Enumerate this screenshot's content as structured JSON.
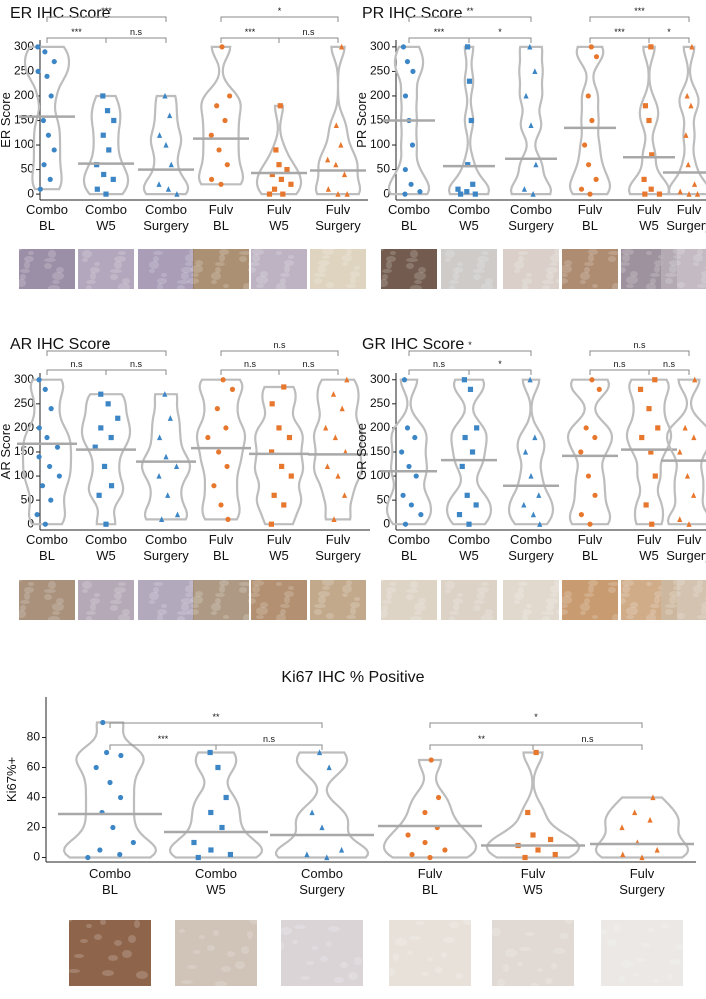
{
  "chart_data": [
    {
      "type": "violin",
      "title": "ER IHC Score",
      "y_label": "ER Score",
      "ylim": [
        -12,
        314
      ],
      "yticks": [
        0,
        50,
        100,
        150,
        200,
        250,
        300
      ],
      "categories": [
        [
          "Combo",
          "BL"
        ],
        [
          "Combo",
          "W5"
        ],
        [
          "Combo",
          "Surgery"
        ],
        [
          "Fulv",
          "BL"
        ],
        [
          "Fulv",
          "W5"
        ],
        [
          "Fulv",
          "Surgery"
        ]
      ],
      "colors": [
        "#3d86c6",
        "#3d86c6",
        "#3d86c6",
        "#e8772e",
        "#e8772e",
        "#e8772e"
      ],
      "markers": [
        "circle",
        "square",
        "triangle",
        "circle",
        "square",
        "triangle"
      ],
      "values": [
        158,
        62,
        50,
        113,
        43,
        48
      ],
      "points": [
        [
          300,
          290,
          270,
          250,
          240,
          200,
          150,
          120,
          90,
          60,
          30,
          10
        ],
        [
          200,
          170,
          150,
          120,
          90,
          60,
          40,
          30,
          10,
          0
        ],
        [
          200,
          160,
          120,
          100,
          60,
          20,
          10,
          0
        ],
        [
          300,
          200,
          180,
          150,
          120,
          90,
          60,
          30,
          20
        ],
        [
          180,
          90,
          60,
          50,
          40,
          30,
          20,
          10,
          0,
          0
        ],
        [
          300,
          140,
          100,
          70,
          60,
          40,
          10,
          0,
          0
        ]
      ],
      "comparisons": [
        {
          "from": 0,
          "to": 1,
          "label": "***"
        },
        {
          "from": 1,
          "to": 2,
          "label": "n.s"
        },
        {
          "from": 0,
          "to": 2,
          "label": "***"
        },
        {
          "from": 3,
          "to": 4,
          "label": "***"
        },
        {
          "from": 4,
          "to": 5,
          "label": "n.s"
        },
        {
          "from": 3,
          "to": 5,
          "label": "*"
        }
      ]
    },
    {
      "type": "violin",
      "title": "PR IHC Score",
      "y_label": "PR Score",
      "ylim": [
        -12,
        314
      ],
      "yticks": [
        0,
        50,
        100,
        150,
        200,
        250,
        300
      ],
      "categories": [
        [
          "Combo",
          "BL"
        ],
        [
          "Combo",
          "W5"
        ],
        [
          "Combo",
          "Surgery"
        ],
        [
          "Fulv",
          "BL"
        ],
        [
          "Fulv",
          "W5"
        ],
        [
          "Fulv",
          "Surgery"
        ]
      ],
      "colors": [
        "#3d86c6",
        "#3d86c6",
        "#3d86c6",
        "#e8772e",
        "#e8772e",
        "#e8772e"
      ],
      "markers": [
        "circle",
        "square",
        "triangle",
        "circle",
        "square",
        "triangle"
      ],
      "values": [
        150,
        57,
        72,
        135,
        75,
        44
      ],
      "points": [
        [
          300,
          270,
          250,
          200,
          150,
          100,
          50,
          20,
          5,
          0
        ],
        [
          300,
          230,
          150,
          60,
          20,
          10,
          5,
          0,
          0
        ],
        [
          300,
          250,
          200,
          140,
          60,
          10,
          0
        ],
        [
          300,
          280,
          200,
          150,
          100,
          60,
          30,
          10,
          0
        ],
        [
          300,
          180,
          150,
          80,
          30,
          10,
          0,
          0
        ],
        [
          300,
          200,
          180,
          120,
          60,
          20,
          5,
          0,
          0
        ]
      ],
      "comparisons": [
        {
          "from": 0,
          "to": 1,
          "label": "***"
        },
        {
          "from": 1,
          "to": 2,
          "label": "*"
        },
        {
          "from": 0,
          "to": 2,
          "label": "**"
        },
        {
          "from": 3,
          "to": 4,
          "label": "***"
        },
        {
          "from": 4,
          "to": 5,
          "label": "*"
        },
        {
          "from": 3,
          "to": 5,
          "label": "***"
        }
      ]
    },
    {
      "type": "violin",
      "title": "AR IHC Score",
      "y_label": "AR Score",
      "ylim": [
        -12,
        314
      ],
      "yticks": [
        0,
        50,
        100,
        150,
        200,
        250,
        300
      ],
      "categories": [
        [
          "Combo",
          "BL"
        ],
        [
          "Combo",
          "W5"
        ],
        [
          "Combo",
          "Surgery"
        ],
        [
          "Fulv",
          "BL"
        ],
        [
          "Fulv",
          "W5"
        ],
        [
          "Fulv",
          "Surgery"
        ]
      ],
      "colors": [
        "#3d86c6",
        "#3d86c6",
        "#3d86c6",
        "#e8772e",
        "#e8772e",
        "#e8772e"
      ],
      "markers": [
        "circle",
        "square",
        "triangle",
        "circle",
        "square",
        "triangle"
      ],
      "values": [
        167,
        155,
        130,
        158,
        146,
        145
      ],
      "points": [
        [
          300,
          280,
          240,
          200,
          180,
          160,
          140,
          120,
          100,
          80,
          50,
          20,
          0
        ],
        [
          270,
          250,
          220,
          200,
          180,
          160,
          120,
          80,
          60,
          0
        ],
        [
          270,
          220,
          180,
          140,
          120,
          100,
          60,
          20,
          10
        ],
        [
          300,
          280,
          240,
          200,
          180,
          150,
          120,
          80,
          40,
          10
        ],
        [
          285,
          250,
          200,
          180,
          150,
          120,
          100,
          60,
          40,
          0
        ],
        [
          300,
          270,
          240,
          200,
          180,
          150,
          120,
          100,
          60,
          10
        ]
      ],
      "comparisons": [
        {
          "from": 0,
          "to": 1,
          "label": "n.s"
        },
        {
          "from": 1,
          "to": 2,
          "label": "n.s"
        },
        {
          "from": 0,
          "to": 2,
          "label": "*"
        },
        {
          "from": 3,
          "to": 4,
          "label": "n.s"
        },
        {
          "from": 4,
          "to": 5,
          "label": "n.s"
        },
        {
          "from": 3,
          "to": 5,
          "label": "n.s"
        }
      ]
    },
    {
      "type": "violin",
      "title": "GR IHC Score",
      "y_label": "GR Score",
      "ylim": [
        -12,
        314
      ],
      "yticks": [
        0,
        50,
        100,
        150,
        200,
        250,
        300
      ],
      "categories": [
        [
          "Combo",
          "BL"
        ],
        [
          "Combo",
          "W5"
        ],
        [
          "Combo",
          "Surgery"
        ],
        [
          "Fulv",
          "BL"
        ],
        [
          "Fulv",
          "W5"
        ],
        [
          "Fulv",
          "Surgery"
        ]
      ],
      "colors": [
        "#3d86c6",
        "#3d86c6",
        "#3d86c6",
        "#e8772e",
        "#e8772e",
        "#e8772e"
      ],
      "markers": [
        "circle",
        "square",
        "triangle",
        "circle",
        "square",
        "triangle"
      ],
      "values": [
        110,
        133,
        80,
        142,
        155,
        132
      ],
      "points": [
        [
          300,
          200,
          180,
          150,
          120,
          100,
          60,
          40,
          20,
          0
        ],
        [
          300,
          280,
          200,
          180,
          150,
          120,
          60,
          40,
          20,
          0
        ],
        [
          300,
          180,
          150,
          100,
          60,
          40,
          20,
          0
        ],
        [
          300,
          280,
          200,
          180,
          150,
          100,
          60,
          20,
          0
        ],
        [
          300,
          280,
          240,
          200,
          180,
          150,
          100,
          40,
          0
        ],
        [
          300,
          200,
          180,
          150,
          100,
          60,
          10,
          0
        ]
      ],
      "comparisons": [
        {
          "from": 0,
          "to": 1,
          "label": "n.s"
        },
        {
          "from": 1,
          "to": 2,
          "label": "*"
        },
        {
          "from": 0,
          "to": 2,
          "label": "*"
        },
        {
          "from": 3,
          "to": 4,
          "label": "n.s"
        },
        {
          "from": 4,
          "to": 5,
          "label": "n.s"
        },
        {
          "from": 3,
          "to": 5,
          "label": "n.s"
        }
      ]
    },
    {
      "type": "violin",
      "title": "Ki67 IHC % Positive",
      "y_label": "Ki67%+",
      "ylim": [
        -3,
        107
      ],
      "yticks": [
        0,
        20,
        40,
        60,
        80
      ],
      "categories": [
        [
          "Combo",
          "BL"
        ],
        [
          "Combo",
          "W5"
        ],
        [
          "Combo",
          "Surgery"
        ],
        [
          "Fulv",
          "BL"
        ],
        [
          "Fulv",
          "W5"
        ],
        [
          "Fulv",
          "Surgery"
        ]
      ],
      "colors": [
        "#3d86c6",
        "#3d86c6",
        "#3d86c6",
        "#e8772e",
        "#e8772e",
        "#e8772e"
      ],
      "markers": [
        "circle",
        "square",
        "triangle",
        "circle",
        "square",
        "triangle"
      ],
      "values": [
        29,
        17,
        15,
        21,
        8,
        9
      ],
      "points": [
        [
          90,
          70,
          68,
          60,
          50,
          40,
          30,
          20,
          10,
          5,
          2,
          0
        ],
        [
          70,
          60,
          40,
          30,
          20,
          10,
          5,
          2,
          0
        ],
        [
          70,
          60,
          30,
          20,
          5,
          2,
          0
        ],
        [
          65,
          40,
          30,
          20,
          15,
          10,
          5,
          2,
          0
        ],
        [
          70,
          30,
          15,
          12,
          8,
          5,
          2,
          0
        ],
        [
          40,
          30,
          25,
          20,
          10,
          5,
          2,
          0
        ]
      ],
      "comparisons": [
        {
          "from": 0,
          "to": 1,
          "label": "***"
        },
        {
          "from": 1,
          "to": 2,
          "label": "n.s"
        },
        {
          "from": 0,
          "to": 2,
          "label": "**"
        },
        {
          "from": 3,
          "to": 4,
          "label": "**"
        },
        {
          "from": 4,
          "to": 5,
          "label": "n.s"
        },
        {
          "from": 3,
          "to": 5,
          "label": "*"
        }
      ]
    }
  ]
}
